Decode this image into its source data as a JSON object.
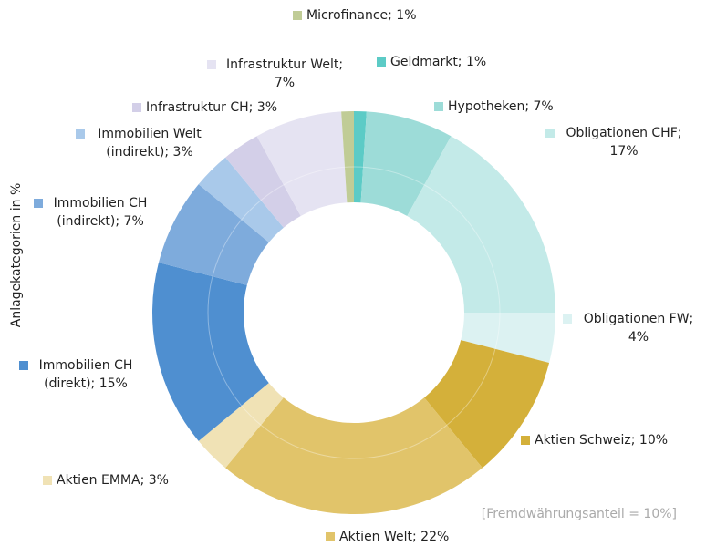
{
  "chart_data": {
    "type": "donut",
    "y_label": "Anlagekategorien in %",
    "annotation": "[Fremdwährungsanteil = 10%]",
    "categories": [
      "Geldmarkt",
      "Hypotheken",
      "Obligationen CHF",
      "Obligationen FW",
      "Aktien Schweiz",
      "Aktien Welt",
      "Aktien EMMA",
      "Immobilien CH (direkt)",
      "Immobilien CH (indirekt)",
      "Immobilien Welt (indirekt)",
      "Infrastruktur CH",
      "Infrastruktur Welt",
      "Microfinance"
    ],
    "values": [
      1,
      7,
      17,
      4,
      10,
      22,
      3,
      15,
      7,
      3,
      3,
      7,
      1
    ],
    "value_labels": [
      [
        "Geldmarkt; 1%"
      ],
      [
        "Hypotheken; 7%"
      ],
      [
        "Obligationen CHF;",
        "17%"
      ],
      [
        "Obligationen FW;",
        "4%"
      ],
      [
        "Aktien Schweiz; 10%"
      ],
      [
        "Aktien Welt; 22%"
      ],
      [
        "Aktien EMMA; 3%"
      ],
      [
        "Immobilien CH",
        "(direkt); 15%"
      ],
      [
        "Immobilien CH",
        "(indirekt); 7%"
      ],
      [
        "Immobilien Welt",
        "(indirekt); 3%"
      ],
      [
        "Infrastruktur CH; 3%"
      ],
      [
        "Infrastruktur Welt;",
        "7%"
      ],
      [
        "Microfinance; 1%"
      ]
    ],
    "colors": [
      "#5ccbc6",
      "#9ddcd8",
      "#c3eae8",
      "#dcf2f2",
      "#d4b03a",
      "#e1c46a",
      "#f0e2b5",
      "#4f8fd0",
      "#7eabdc",
      "#a9c9ea",
      "#d3cfe8",
      "#e5e3f2",
      "#c0cc96"
    ]
  }
}
